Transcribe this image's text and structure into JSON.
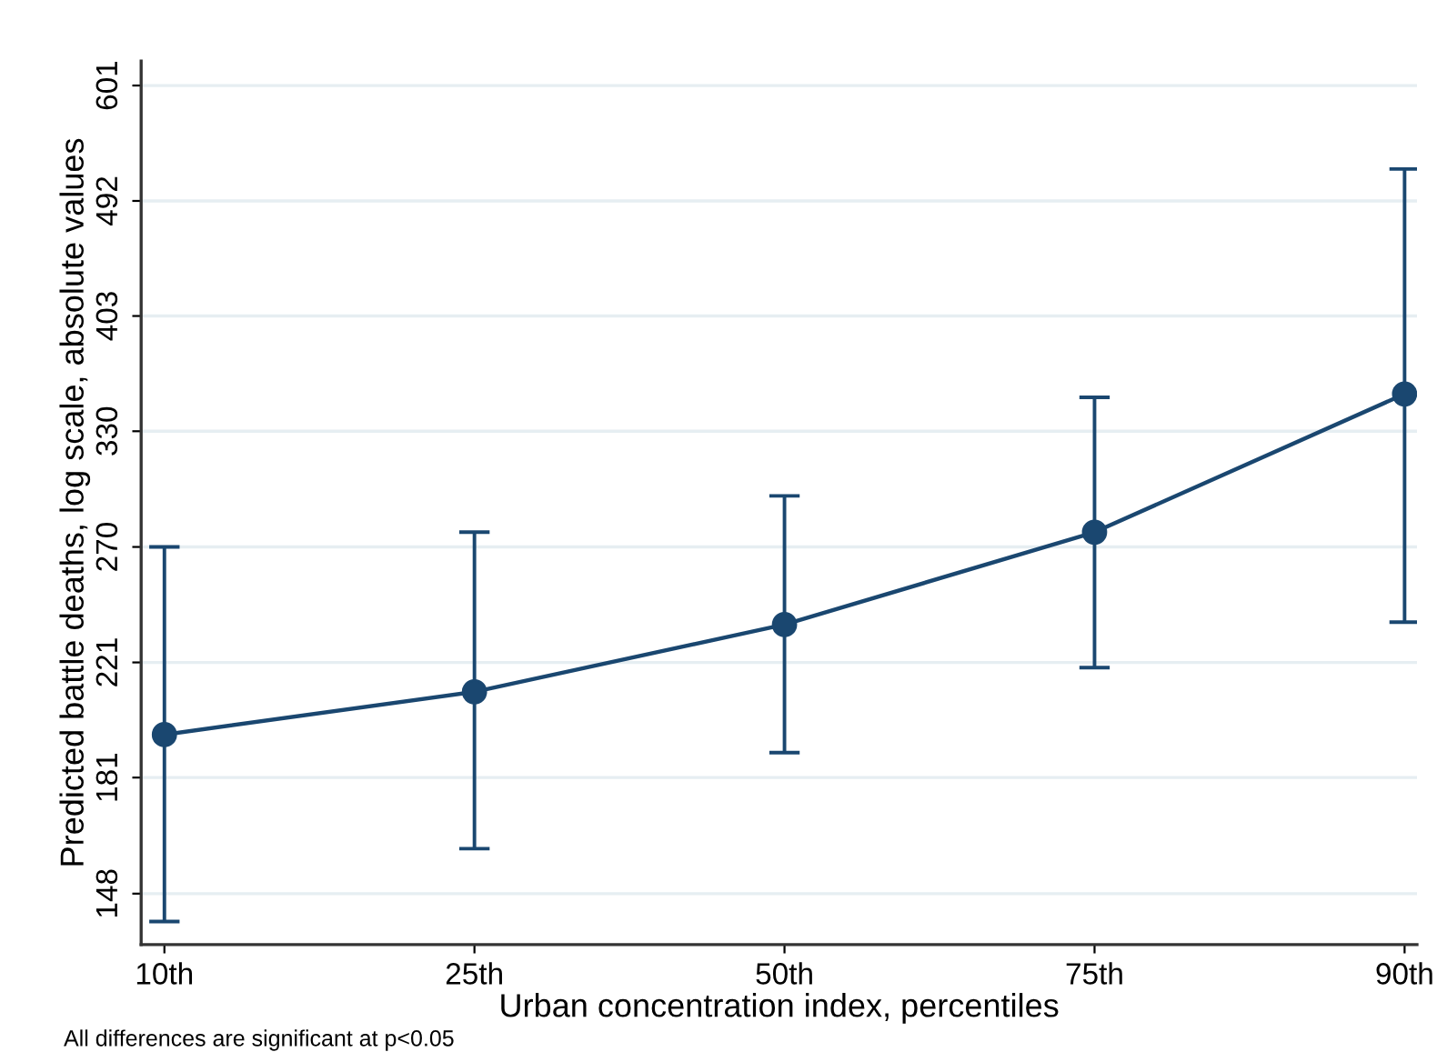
{
  "chart_data": {
    "type": "line",
    "xlabel": "Urban concentration index, percentiles",
    "ylabel": "Predicted battle deaths, log scale, absolute values",
    "annotations": [
      "All differences are significant at p<0.05"
    ],
    "categories": [
      "10th",
      "25th",
      "50th",
      "75th",
      "90th"
    ],
    "series": [
      {
        "color": "#1a4770",
        "values": [
          195,
          210,
          236,
          277,
          352
        ],
        "errors": [
          [
            141,
            270
          ],
          [
            160,
            277
          ],
          [
            189,
            295
          ],
          [
            219,
            350
          ],
          [
            237,
            520
          ]
        ]
      }
    ],
    "log": "y",
    "ylim": [
      135.5,
      627
    ],
    "yticks": [
      148,
      181,
      221,
      270,
      330,
      403,
      492,
      601
    ],
    "grid": "y",
    "marker": "circle",
    "line_style": "solid",
    "legend": false
  }
}
